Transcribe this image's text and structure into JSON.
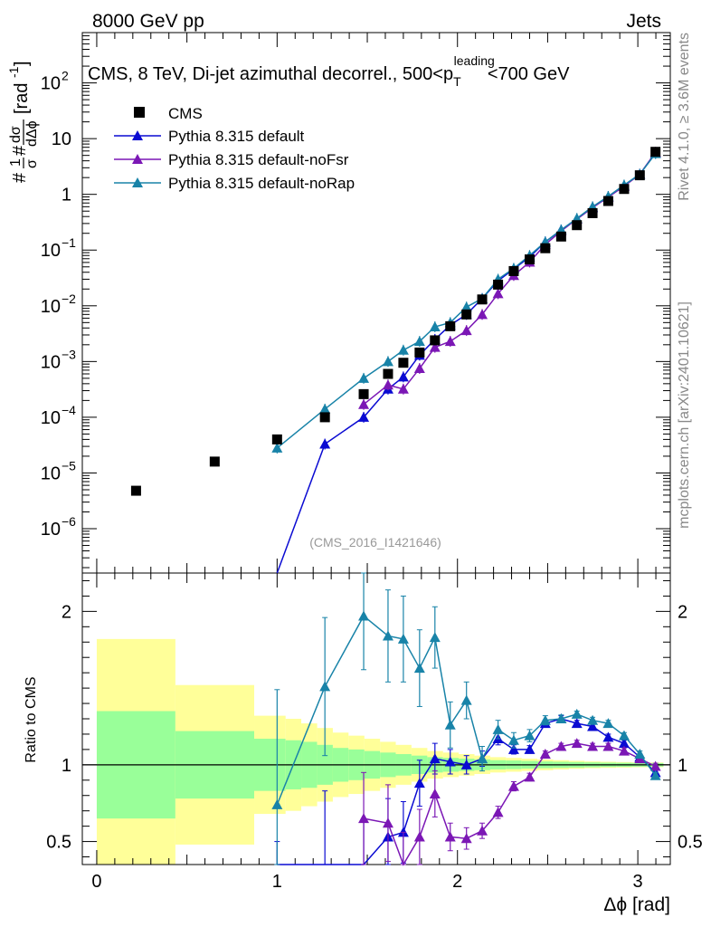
{
  "header": {
    "left": "8000 GeV pp",
    "right": "Jets",
    "side_right_top": "Rivet 4.1.0, ≥ 3.6M events",
    "side_right_bottom": "mcplots.cern.ch [arXiv:2401.10621]",
    "analysis_id": "(CMS_2016_I1421646)"
  },
  "chart_data": {
    "type": "line",
    "title": "CMS, 8 TeV, Di-jet azimuthal decorrel., 500<p_T^leading<700 GeV",
    "title_parts": {
      "main": "CMS, 8 TeV, Di-jet azimuthal decorrel., 500<p",
      "sub": "T",
      "sup": "leading",
      "tail": "<700 GeV"
    },
    "xlabel": "Δϕ [rad]",
    "ylabel": "#1/σ#dσ/dΔϕ [rad⁻¹]",
    "ylabel_parts": {
      "hash": "#",
      "one": "1",
      "sigma": "σ",
      "dsigma": "dσ",
      "dphi": "dΔϕ",
      "unit": "[rad",
      "unit_sup": "-1",
      "unit_close": "]"
    },
    "ratio_ylabel": "Ratio to CMS",
    "xlim": [
      -0.08,
      3.18
    ],
    "ylim": [
      1.6e-07,
      800
    ],
    "ratio_ylim": [
      0.35,
      2.25
    ],
    "x_ticks": [
      "0",
      "1",
      "2",
      "3"
    ],
    "y_ticks": [
      {
        "mant": "10",
        "exp": "2"
      },
      {
        "mant": "10",
        "exp": ""
      },
      {
        "mant": "1",
        "exp": ""
      },
      {
        "mant": "10",
        "exp": "−1"
      },
      {
        "mant": "10",
        "exp": "−2"
      },
      {
        "mant": "10",
        "exp": "−3"
      },
      {
        "mant": "10",
        "exp": "−4"
      },
      {
        "mant": "10",
        "exp": "−5"
      },
      {
        "mant": "10",
        "exp": "−6"
      }
    ],
    "ratio_ticks": [
      "0.5",
      "1",
      "2"
    ],
    "legend_position": "top-left",
    "band_edges": [
      0,
      0.436,
      0.873,
      1.047,
      1.134,
      1.222,
      1.309,
      1.396,
      1.484,
      1.571,
      1.658,
      1.745,
      1.833,
      1.92,
      2.007,
      2.094,
      2.182,
      2.269,
      2.356,
      2.443,
      2.531,
      2.618,
      2.705,
      2.793,
      2.88,
      2.967,
      3.054,
      3.142
    ],
    "band_total": [
      0.82,
      0.52,
      0.32,
      0.3,
      0.27,
      0.24,
      0.21,
      0.19,
      0.17,
      0.15,
      0.13,
      0.11,
      0.09,
      0.08,
      0.07,
      0.06,
      0.05,
      0.045,
      0.04,
      0.035,
      0.03,
      0.026,
      0.022,
      0.02,
      0.018,
      0.016,
      0.015
    ],
    "band_stat": [
      0.35,
      0.22,
      0.17,
      0.16,
      0.15,
      0.13,
      0.11,
      0.1,
      0.09,
      0.08,
      0.07,
      0.06,
      0.05,
      0.045,
      0.04,
      0.035,
      0.03,
      0.028,
      0.025,
      0.022,
      0.02,
      0.018,
      0.016,
      0.014,
      0.013,
      0.012,
      0.011
    ],
    "data": {
      "name": "CMS",
      "x": [
        0.218,
        0.654,
        1.0,
        1.265,
        1.48,
        1.615,
        1.7,
        1.79,
        1.875,
        1.96,
        2.05,
        2.137,
        2.225,
        2.312,
        2.4,
        2.487,
        2.575,
        2.662,
        2.749,
        2.836,
        2.924,
        3.011,
        3.098
      ],
      "y": [
        4.8e-06,
        1.6e-05,
        4e-05,
        0.0001,
        0.00026,
        0.0006,
        0.00095,
        0.00145,
        0.0024,
        0.0043,
        0.007,
        0.013,
        0.024,
        0.042,
        0.068,
        0.108,
        0.175,
        0.28,
        0.46,
        0.76,
        1.25,
        2.2,
        5.8
      ]
    },
    "series": [
      {
        "name": "Pythia 8.315 default",
        "color": "#0a0ad2",
        "x": [
          1.0,
          1.265,
          1.48,
          1.615,
          1.7,
          1.79,
          1.875,
          1.96,
          2.05,
          2.137,
          2.225,
          2.312,
          2.4,
          2.487,
          2.575,
          2.662,
          2.749,
          2.836,
          2.924,
          3.011,
          3.098
        ],
        "y": [
          1e-08,
          3.3e-05,
          0.0001,
          0.00032,
          0.00053,
          0.0013,
          0.0025,
          0.0045,
          0.007,
          0.0135,
          0.028,
          0.046,
          0.075,
          0.14,
          0.23,
          0.36,
          0.58,
          0.9,
          1.42,
          2.3,
          5.5
        ],
        "ratio": [
          0.0,
          0.33,
          0.34,
          0.53,
          0.56,
          0.88,
          1.04,
          1.02,
          1.0,
          1.04,
          1.17,
          1.1,
          1.1,
          1.27,
          1.3,
          1.27,
          1.25,
          1.18,
          1.14,
          1.05,
          0.95
        ],
        "ratio_err": [
          0.5,
          0.5,
          0.3,
          0.25,
          0.2,
          0.15,
          0.1,
          0.08,
          0.06,
          0.05,
          0.04,
          0.03,
          0.025,
          0.02,
          0.02,
          0.02,
          0.02,
          0.02,
          0.02,
          0.02,
          0.02
        ]
      },
      {
        "name": "Pythia 8.315 default-noFsr",
        "color": "#7b17b5",
        "x": [
          1.48,
          1.615,
          1.7,
          1.79,
          1.875,
          1.96,
          2.05,
          2.137,
          2.225,
          2.312,
          2.4,
          2.487,
          2.575,
          2.662,
          2.749,
          2.836,
          2.924,
          3.011,
          3.098
        ],
        "y": [
          0.00017,
          0.00038,
          0.00032,
          0.00075,
          0.0018,
          0.0023,
          0.0036,
          0.007,
          0.0165,
          0.035,
          0.061,
          0.126,
          0.22,
          0.36,
          0.58,
          0.89,
          1.4,
          2.3,
          5.7
        ],
        "ratio": [
          0.65,
          0.62,
          0.34,
          0.53,
          0.81,
          0.53,
          0.52,
          0.57,
          0.69,
          0.86,
          0.92,
          1.07,
          1.12,
          1.14,
          1.12,
          1.12,
          1.09,
          1.04,
          0.99
        ],
        "ratio_err": [
          0.3,
          0.25,
          0.22,
          0.18,
          0.15,
          0.09,
          0.07,
          0.05,
          0.04,
          0.03,
          0.025,
          0.02,
          0.02,
          0.02,
          0.02,
          0.02,
          0.02,
          0.02,
          0.02
        ]
      },
      {
        "name": "Pythia 8.315 default-noRap",
        "color": "#1883a8",
        "x": [
          1.0,
          1.265,
          1.48,
          1.615,
          1.7,
          1.79,
          1.875,
          1.96,
          2.05,
          2.137,
          2.225,
          2.312,
          2.4,
          2.487,
          2.575,
          2.662,
          2.749,
          2.836,
          2.924,
          3.011,
          3.098
        ],
        "y": [
          2.8e-05,
          0.00014,
          0.0005,
          0.001,
          0.0016,
          0.0023,
          0.0042,
          0.005,
          0.0095,
          0.0135,
          0.03,
          0.047,
          0.08,
          0.14,
          0.23,
          0.37,
          0.6,
          0.92,
          1.47,
          2.3,
          5.4
        ],
        "ratio": [
          0.74,
          1.51,
          1.97,
          1.84,
          1.82,
          1.63,
          1.83,
          1.26,
          1.42,
          1.04,
          1.23,
          1.16,
          1.19,
          1.29,
          1.3,
          1.33,
          1.29,
          1.27,
          1.19,
          1.07,
          0.93
        ],
        "ratio_err": [
          0.75,
          0.45,
          0.35,
          0.3,
          0.28,
          0.25,
          0.2,
          0.15,
          0.12,
          0.08,
          0.06,
          0.05,
          0.04,
          0.03,
          0.025,
          0.02,
          0.02,
          0.02,
          0.02,
          0.02,
          0.02
        ]
      }
    ]
  }
}
